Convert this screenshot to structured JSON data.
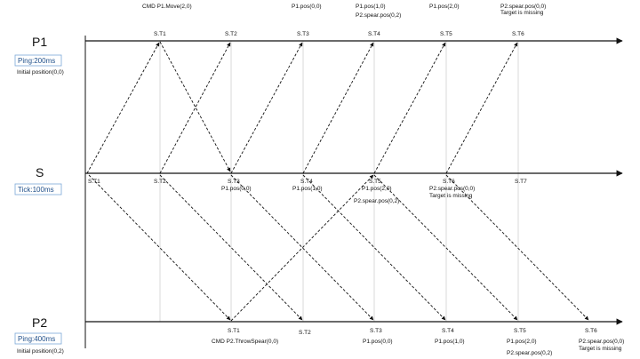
{
  "lanes": {
    "p1": {
      "label": "P1",
      "info": "Ping:200ms",
      "initial": "Initial position(0,0)"
    },
    "s": {
      "label": "S",
      "info": "Tick:100ms"
    },
    "p2": {
      "label": "P2",
      "info": "Ping:400ms",
      "initial": "Initial position(0,2)"
    }
  },
  "p1_ticks": [
    "S.T1",
    "S.T2",
    "S.T3",
    "S.T4",
    "S.T5",
    "S.T6"
  ],
  "s_ticks": [
    "S.T1",
    "S.T2",
    "S.T3",
    "S.T4",
    "S.T5",
    "S.T6",
    "S.T7"
  ],
  "p2_ticks": [
    "S.T1",
    "S.T2",
    "S.T3",
    "S.T4",
    "S.T5",
    "S.T6"
  ],
  "p1_notes": {
    "cmd": "CMD P1.Move(2,0)",
    "t3": "P1.pos(0,0)",
    "t4a": "P1.pos(1,0)",
    "t4b": "P2.spear.pos(0,2)",
    "t5": "P1.pos(2,0)",
    "t6a": "P2.spear.pos(0,0)",
    "t6b": "Target is missing"
  },
  "s_notes": {
    "t3": "P1.pos(0,0)",
    "t4": "P1.pos(1,0)",
    "t5a": "P1.pos(2,0)",
    "t5b": "P2.spear.pos(0,2)",
    "t6a": "P2.spear.pos(0,0)",
    "t6b": "Target is missing"
  },
  "p2_notes": {
    "cmd": "CMD P2.ThrowSpear(0,0)",
    "t3": "P1.pos(0,0)",
    "t4": "P1.pos(1,0)",
    "t5a": "P1.pos(2,0)",
    "t5b": "P2.spear.pos(0,2)",
    "t6a": "P2.spear.pos(0,0)",
    "t6b": "Target is missing"
  }
}
